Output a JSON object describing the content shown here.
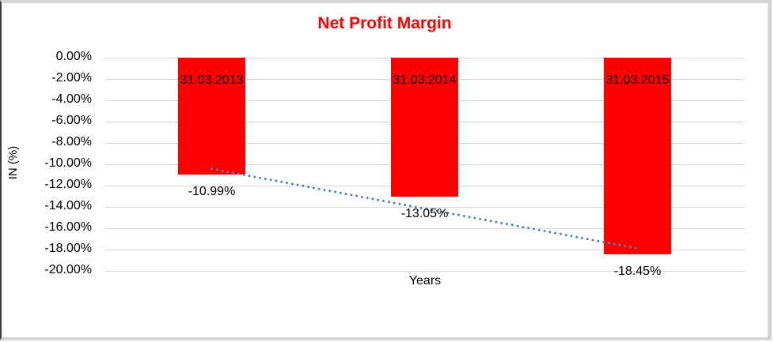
{
  "frame": {
    "border_grey": "#d4d4d4",
    "border_dark": "#3a3a3a"
  },
  "chart_data": {
    "type": "bar",
    "title": "Net Profit Margin",
    "title_color": "#ff0000",
    "xlabel": "Years",
    "ylabel": "IN (%)",
    "categories": [
      "31.03.2013",
      "31.03.2014",
      "31.03.2015"
    ],
    "values": [
      -10.99,
      -13.05,
      -18.45
    ],
    "data_labels": [
      "-10.99%",
      "-13.05%",
      "-18.45%"
    ],
    "bar_color": "#ff0000",
    "ylim": [
      -20,
      0
    ],
    "y_tick_step": 2,
    "y_tick_labels": [
      "0.00%",
      "-2.00%",
      "-4.00%",
      "-6.00%",
      "-8.00%",
      "-10.00%",
      "-12.00%",
      "-14.00%",
      "-16.00%",
      "-18.00%",
      "-20.00%"
    ],
    "gridline_color": "#d9d9d9",
    "grid": "horizontal",
    "legend": "none",
    "trendline": {
      "type": "linear",
      "style": "dotted",
      "color": "#4f81bd",
      "fit_values": [
        -10.43,
        -17.89
      ]
    }
  }
}
